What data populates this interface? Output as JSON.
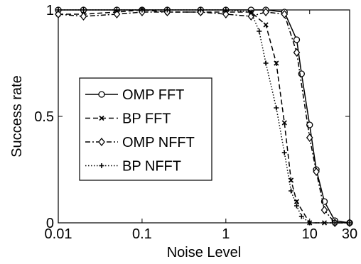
{
  "chart_data": {
    "type": "line",
    "title": "",
    "xlabel": "Noise Level",
    "ylabel": "Success rate",
    "x_scale": "log",
    "xlim": [
      0.01,
      30
    ],
    "ylim": [
      0,
      1
    ],
    "x_ticks": [
      0.01,
      0.1,
      1,
      10,
      30
    ],
    "x_tick_labels": [
      "0.01",
      "0.1",
      "1",
      "10",
      "30"
    ],
    "y_ticks": [
      0,
      0.5,
      1
    ],
    "y_tick_labels": [
      "0",
      "0.5",
      "1"
    ],
    "grid": false,
    "legend_position": "center-left",
    "series": [
      {
        "name": "OMP FFT",
        "color": "#000000",
        "line_style": "solid",
        "marker": "circle",
        "x": [
          0.01,
          0.02,
          0.05,
          0.1,
          0.2,
          0.5,
          1,
          2,
          3,
          5,
          7,
          8,
          10,
          12,
          15,
          20,
          30
        ],
        "y": [
          1.0,
          1.0,
          1.0,
          1.0,
          1.0,
          1.0,
          1.0,
          1.0,
          1.0,
          0.99,
          0.86,
          0.7,
          0.46,
          0.25,
          0.1,
          0.01,
          0.0
        ]
      },
      {
        "name": "BP FFT",
        "color": "#000000",
        "line_style": "dashed",
        "marker": "x",
        "x": [
          0.01,
          0.02,
          0.05,
          0.1,
          0.2,
          0.5,
          1,
          2,
          3,
          4,
          5,
          6,
          7,
          10,
          15,
          20,
          30
        ],
        "y": [
          0.98,
          0.98,
          0.99,
          1.0,
          0.99,
          0.99,
          0.99,
          0.99,
          0.93,
          0.75,
          0.47,
          0.2,
          0.1,
          0.0,
          0.0,
          0.0,
          0.0
        ]
      },
      {
        "name": "OMP NFFT",
        "color": "#000000",
        "line_style": "dashdot",
        "marker": "diamond",
        "x": [
          0.01,
          0.02,
          0.05,
          0.1,
          0.2,
          0.5,
          1,
          2,
          3,
          5,
          7,
          10,
          12,
          15,
          20,
          30
        ],
        "y": [
          0.98,
          0.97,
          0.98,
          0.99,
          0.99,
          0.99,
          0.98,
          0.97,
          0.99,
          0.98,
          0.8,
          0.4,
          0.24,
          0.06,
          0.0,
          0.0
        ]
      },
      {
        "name": "BP NFFT",
        "color": "#000000",
        "line_style": "dotted",
        "marker": "plus",
        "x": [
          0.01,
          0.02,
          0.05,
          0.1,
          0.2,
          0.5,
          1,
          2,
          2.5,
          3,
          4,
          5,
          6,
          7,
          8,
          10,
          20,
          30
        ],
        "y": [
          1.0,
          1.0,
          1.0,
          1.0,
          1.0,
          1.0,
          1.0,
          0.99,
          0.9,
          0.75,
          0.54,
          0.33,
          0.15,
          0.08,
          0.03,
          0.0,
          0.0,
          0.0
        ]
      }
    ]
  }
}
